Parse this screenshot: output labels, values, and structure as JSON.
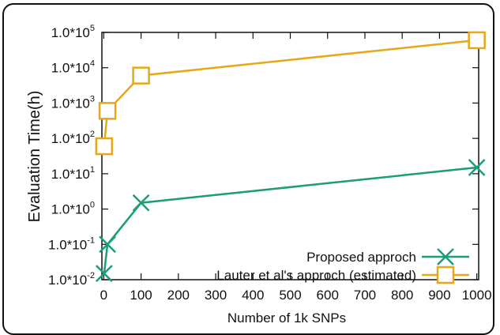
{
  "chart_data": {
    "type": "line",
    "title": "",
    "xlabel": "Number of 1k SNPs",
    "ylabel": "Evaluation Time(h)",
    "y_scale": "log",
    "xlim": [
      -5,
      1005
    ],
    "ylim_exp": [
      -2,
      5
    ],
    "x_ticks": [
      "0",
      "100",
      "200",
      "300",
      "400",
      "500",
      "600",
      "700",
      "800",
      "900",
      "1000"
    ],
    "y_ticks": [
      {
        "base": "1.0*10",
        "exp": "-2"
      },
      {
        "base": "1.0*10",
        "exp": "-1"
      },
      {
        "base": "1.0*10",
        "exp": "0"
      },
      {
        "base": "1.0*10",
        "exp": "1"
      },
      {
        "base": "1.0*10",
        "exp": "2"
      },
      {
        "base": "1.0*10",
        "exp": "3"
      },
      {
        "base": "1.0*10",
        "exp": "4"
      },
      {
        "base": "1.0*10",
        "exp": "5"
      }
    ],
    "grid": false,
    "legend_position": "bottom-right",
    "series": [
      {
        "name": "Proposed approch",
        "color": "#1a9e77",
        "marker": "x",
        "x": [
          1,
          10,
          100,
          1000
        ],
        "y": [
          0.015,
          0.1,
          1.5,
          15
        ]
      },
      {
        "name": "Lauter et al's approch (estimated)",
        "color": "#e6a817",
        "marker": "square",
        "x": [
          1,
          10,
          100,
          1000
        ],
        "y": [
          60,
          600,
          6000,
          60000
        ]
      }
    ]
  }
}
